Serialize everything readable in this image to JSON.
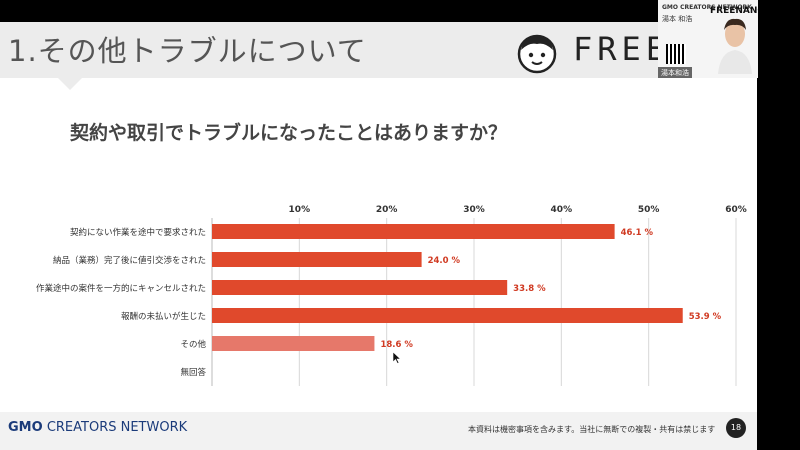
{
  "slide": {
    "title": "1.その他トラブルについて",
    "brand_word": "FREEN",
    "question": "契約や取引でトラブルになったことはありますか？",
    "footer_logo_bold": "GMO",
    "footer_logo_rest": "CREATORS NETWORK",
    "footer_note": "本資料は機密事項を含みます。当社に無断での複製・共有は禁じます",
    "page_number": "18"
  },
  "video": {
    "company_logo": "GMO CREATORS NETWORK",
    "person_name": "湯本 和浩",
    "subtitle": "",
    "brand_logo": "FREENANCE",
    "label": "湯本和浩"
  },
  "chart_data": {
    "type": "bar",
    "orientation": "horizontal",
    "categories": [
      "契約にない作業を途中で要求された",
      "納品（業務）完了後に値引交渉をされた",
      "作業途中の案件を一方的にキャンセルされた",
      "報酬の未払いが生じた",
      "その他",
      "無回答"
    ],
    "values": [
      46.1,
      24.0,
      33.8,
      53.9,
      18.6,
      null
    ],
    "value_labels": [
      "46.1 %",
      "24.0 %",
      "33.8 %",
      "53.9 %",
      "18.6 %",
      ""
    ],
    "xticks": [
      "10%",
      "20%",
      "30%",
      "40%",
      "50%",
      "60%"
    ],
    "xlim": [
      0,
      60
    ],
    "grid": true,
    "colors": {
      "bar": "#e0492c",
      "bar_other": "#e6786a",
      "label": "#d03a22"
    }
  }
}
